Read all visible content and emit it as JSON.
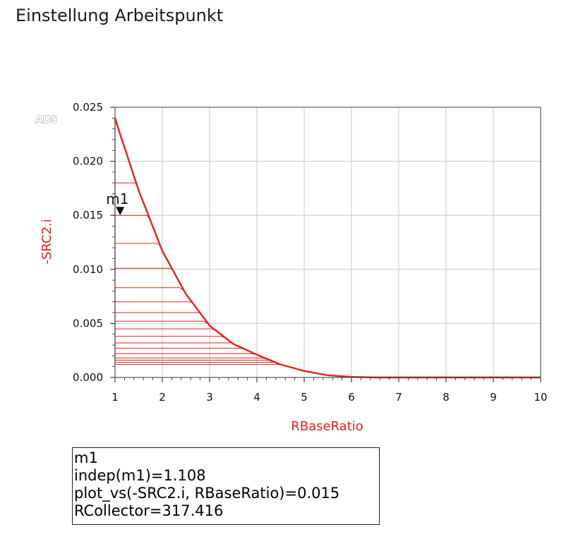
{
  "page": {
    "title": "Einstellung Arbeitspunkt"
  },
  "logo": {
    "text": "ADS"
  },
  "chart_data": {
    "type": "line",
    "xlabel": "RBaseRatio",
    "ylabel": "-SRC2.i",
    "xlim": [
      1,
      10
    ],
    "ylim": [
      0,
      0.025
    ],
    "x_ticks": [
      "1",
      "2",
      "3",
      "4",
      "5",
      "6",
      "7",
      "8",
      "9",
      "10"
    ],
    "y_ticks": [
      "0.000",
      "0.005",
      "0.010",
      "0.015",
      "0.020",
      "0.025"
    ],
    "grid": true,
    "colors": {
      "series": "#e8201a",
      "axis_title": "#e8201a",
      "grid": "#c8c8c8"
    },
    "envelope": {
      "x": [
        1.0,
        1.108,
        1.5,
        2.0,
        2.5,
        3.0,
        3.5,
        4.0,
        4.5,
        5.0,
        5.5,
        6.0,
        6.5,
        7.0,
        8.0,
        9.0,
        10.0
      ],
      "y": [
        0.024,
        0.0225,
        0.0173,
        0.0117,
        0.0077,
        0.0048,
        0.0031,
        0.0021,
        0.0012,
        0.0006,
        0.0002,
        5e-05,
        0.0,
        0.0,
        0.0,
        0.0,
        0.0
      ]
    },
    "sweep_plateaus": [
      0.0018,
      0.0016,
      0.0014,
      0.0012,
      0.0022,
      0.0027,
      0.0032,
      0.0038,
      0.0045,
      0.0052,
      0.006,
      0.007,
      0.0083,
      0.0101,
      0.0124,
      0.015,
      0.018
    ],
    "marker": {
      "name": "m1",
      "x": 1.108,
      "y": 0.015,
      "readout": [
        "m1",
        "indep(m1)=1.108",
        "plot_vs(-SRC2.i, RBaseRatio)=0.015",
        "RCollector=317.416"
      ]
    }
  }
}
